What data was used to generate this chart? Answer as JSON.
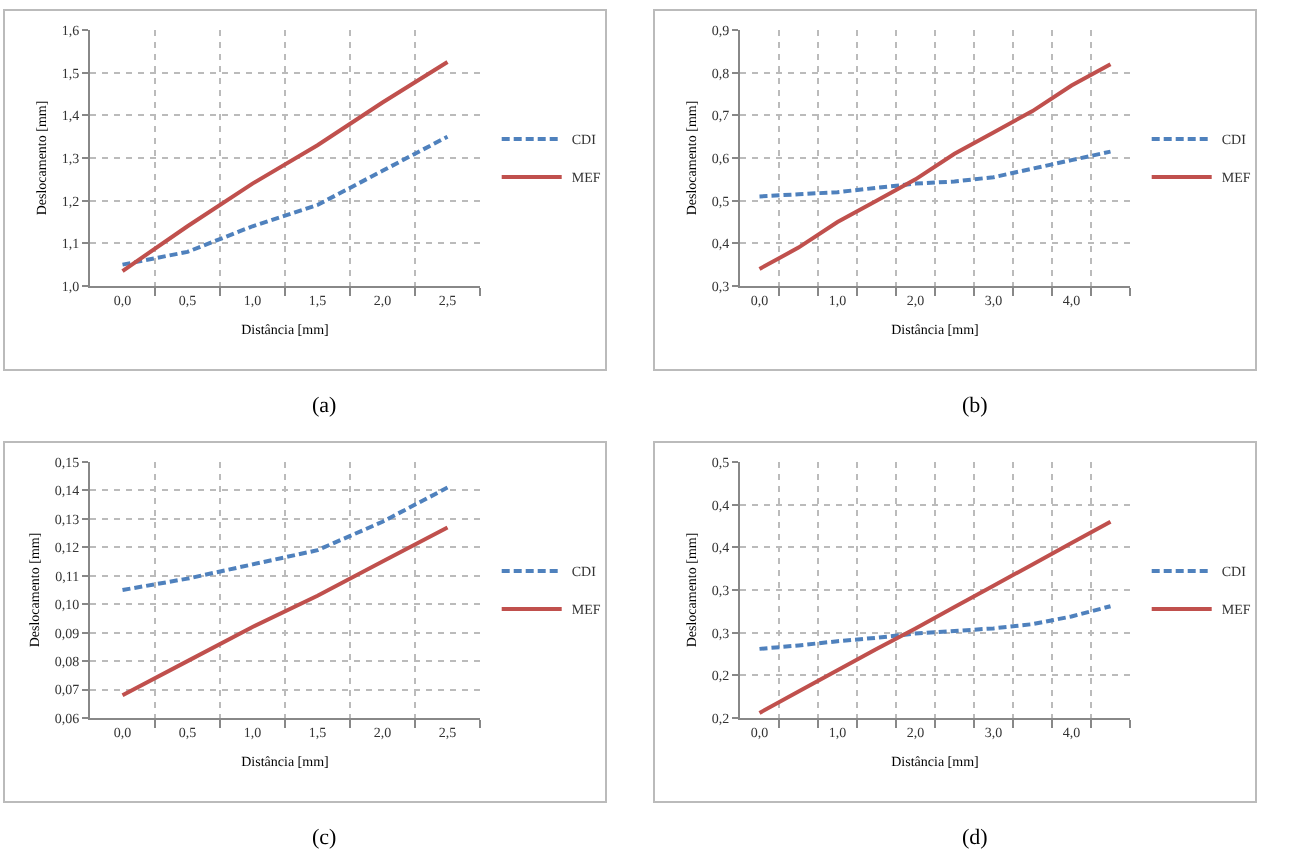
{
  "chart_data": [
    {
      "type": "line",
      "xlabel": "Distância [mm]",
      "ylabel": "Deslocamento [mm]",
      "annotations": [
        "(a)"
      ],
      "categories": [
        "0,0",
        "0,5",
        "1,0",
        "1,5",
        "2,0",
        "2,5"
      ],
      "series": [
        {
          "name": "CDI",
          "color": "#4f81bd",
          "line_style": "dashed",
          "values": [
            1.05,
            1.08,
            1.14,
            1.19,
            1.27,
            1.35
          ]
        },
        {
          "name": "MEF",
          "color": "#c0504d",
          "line_style": "solid",
          "values": [
            1.035,
            1.14,
            1.24,
            1.33,
            1.43,
            1.525
          ]
        }
      ],
      "ylim": [
        1.0,
        1.6
      ],
      "yticks": [
        {
          "value": 1.0,
          "label": "1,0"
        },
        {
          "value": 1.1,
          "label": "1,1"
        },
        {
          "value": 1.2,
          "label": "1,2"
        },
        {
          "value": 1.3,
          "label": "1,3"
        },
        {
          "value": 1.4,
          "label": "1,4"
        },
        {
          "value": 1.5,
          "label": "1,5"
        },
        {
          "value": 1.6,
          "label": "1,6"
        }
      ],
      "grid": true,
      "legend": "right",
      "marker": "none"
    },
    {
      "type": "line",
      "xlabel": "Distância [mm]",
      "ylabel": "Deslocamento [mm]",
      "annotations": [
        "(b)"
      ],
      "categories": [
        "0,0",
        null,
        "1,0",
        null,
        "2,0",
        null,
        "3,0",
        null,
        "4,0",
        null
      ],
      "series": [
        {
          "name": "CDI",
          "color": "#4f81bd",
          "line_style": "dashed",
          "values": [
            0.51,
            0.515,
            0.52,
            0.53,
            0.54,
            0.545,
            0.555,
            0.575,
            0.595,
            0.615
          ]
        },
        {
          "name": "MEF",
          "color": "#c0504d",
          "line_style": "solid",
          "values": [
            0.34,
            0.39,
            0.45,
            0.5,
            0.55,
            0.61,
            0.66,
            0.71,
            0.77,
            0.82
          ]
        }
      ],
      "ylim": [
        0.3,
        0.9
      ],
      "yticks": [
        {
          "value": 0.3,
          "label": "0,3"
        },
        {
          "value": 0.4,
          "label": "0,4"
        },
        {
          "value": 0.5,
          "label": "0,5"
        },
        {
          "value": 0.6,
          "label": "0,6"
        },
        {
          "value": 0.7,
          "label": "0,7"
        },
        {
          "value": 0.8,
          "label": "0,8"
        },
        {
          "value": 0.9,
          "label": "0,9"
        }
      ],
      "grid": true,
      "legend": "right",
      "marker": "none"
    },
    {
      "type": "line",
      "xlabel": "Distância [mm]",
      "ylabel": "Deslocamento [mm]",
      "annotations": [
        "(c)"
      ],
      "categories": [
        "0,0",
        "0,5",
        "1,0",
        "1,5",
        "2,0",
        "2,5"
      ],
      "series": [
        {
          "name": "CDI",
          "color": "#4f81bd",
          "line_style": "dashed",
          "values": [
            0.105,
            0.109,
            0.114,
            0.119,
            0.129,
            0.141
          ]
        },
        {
          "name": "MEF",
          "color": "#c0504d",
          "line_style": "solid",
          "values": [
            0.068,
            0.08,
            0.092,
            0.103,
            0.115,
            0.127
          ]
        }
      ],
      "ylim": [
        0.06,
        0.15
      ],
      "yticks": [
        {
          "value": 0.06,
          "label": "0,06"
        },
        {
          "value": 0.07,
          "label": "0,07"
        },
        {
          "value": 0.08,
          "label": "0,08"
        },
        {
          "value": 0.09,
          "label": "0,09"
        },
        {
          "value": 0.1,
          "label": "0,10"
        },
        {
          "value": 0.11,
          "label": "0,11"
        },
        {
          "value": 0.12,
          "label": "0,12"
        },
        {
          "value": 0.13,
          "label": "0,13"
        },
        {
          "value": 0.14,
          "label": "0,14"
        },
        {
          "value": 0.15,
          "label": "0,15"
        }
      ],
      "grid": true,
      "legend": "right",
      "marker": "none"
    },
    {
      "type": "line",
      "xlabel": "Distância [mm]",
      "ylabel": "Deslocamento [mm]",
      "annotations": [
        "(d)"
      ],
      "categories": [
        "0,0",
        null,
        "1,0",
        null,
        "2,0",
        null,
        "3,0",
        null,
        "4,0",
        null
      ],
      "series": [
        {
          "name": "CDI",
          "color": "#4f81bd",
          "line_style": "dashed",
          "values": [
            0.281,
            0.285,
            0.29,
            0.294,
            0.299,
            0.302,
            0.305,
            0.31,
            0.319,
            0.331
          ]
        },
        {
          "name": "MEF",
          "color": "#c0504d",
          "line_style": "solid",
          "values": [
            0.206,
            0.231,
            0.256,
            0.281,
            0.305,
            0.33,
            0.355,
            0.38,
            0.405,
            0.43
          ]
        }
      ],
      "ylim": [
        0.2,
        0.5
      ],
      "yticks": [
        {
          "value": 0.2,
          "label": "0,2"
        },
        {
          "value": 0.25,
          "label": "0,2"
        },
        {
          "value": 0.3,
          "label": "0,3"
        },
        {
          "value": 0.35,
          "label": "0,3"
        },
        {
          "value": 0.4,
          "label": "0,4"
        },
        {
          "value": 0.45,
          "label": "0,4"
        },
        {
          "value": 0.5,
          "label": "0,5"
        }
      ],
      "grid": true,
      "legend": "right",
      "marker": "none"
    }
  ]
}
